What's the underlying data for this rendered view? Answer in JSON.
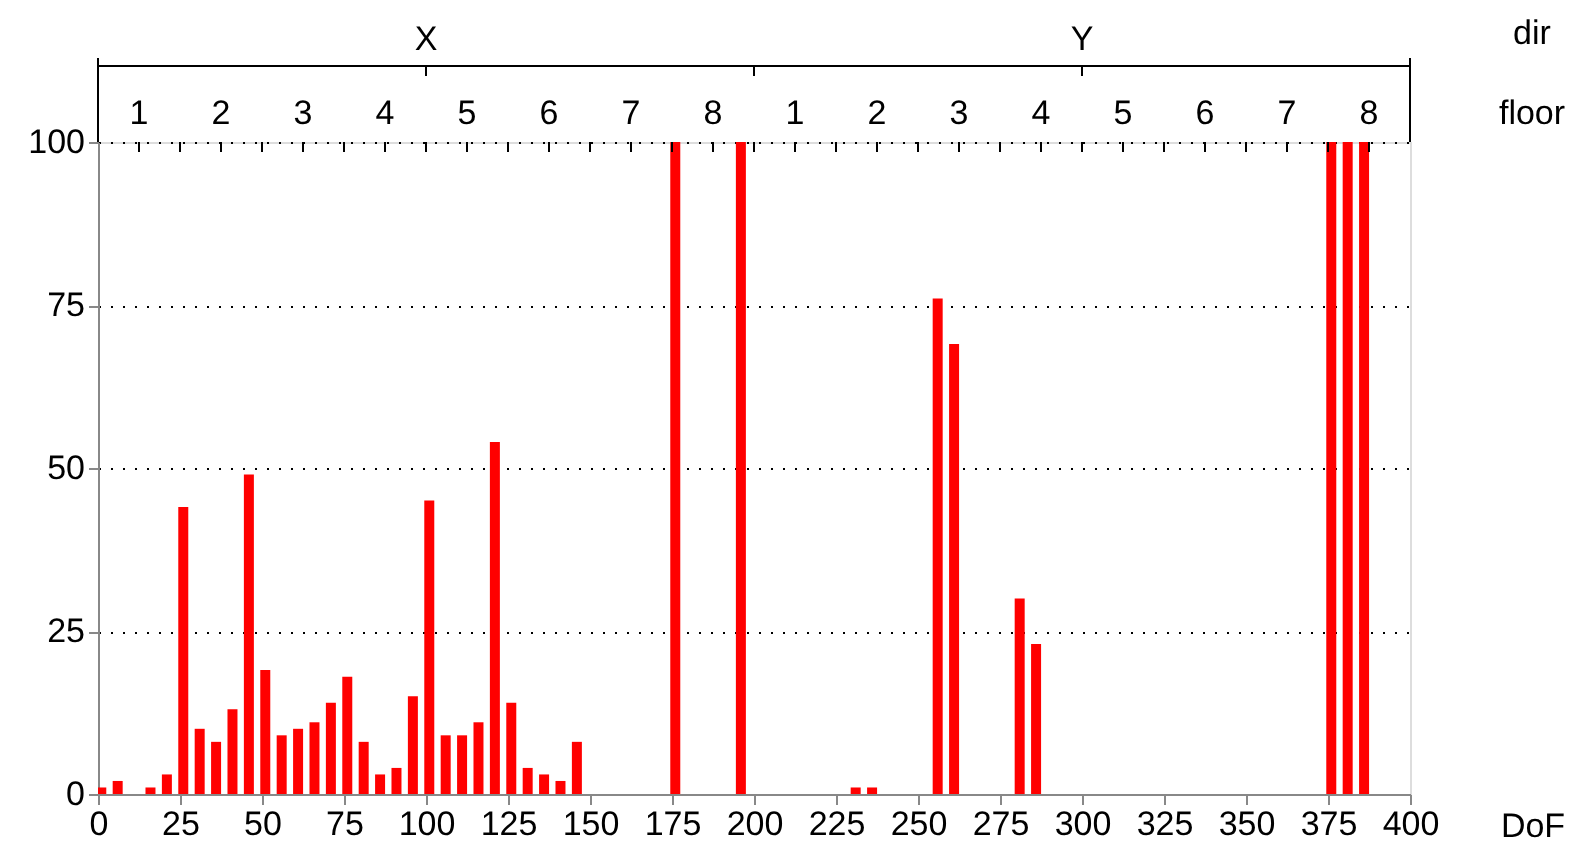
{
  "chart_data": {
    "type": "bar",
    "xlabel": "DoF",
    "color": "#ff0000",
    "grid": "y",
    "x": [
      1,
      6,
      16,
      21,
      26,
      31,
      36,
      41,
      46,
      51,
      56,
      61,
      66,
      71,
      76,
      81,
      86,
      91,
      96,
      101,
      106,
      111,
      116,
      121,
      126,
      131,
      136,
      141,
      146,
      176,
      196,
      231,
      236,
      256,
      261,
      281,
      286,
      376,
      381,
      386
    ],
    "values": [
      1,
      2,
      1,
      3,
      44,
      10,
      8,
      13,
      49,
      19,
      9,
      10,
      11,
      14,
      18,
      8,
      3,
      4,
      15,
      45,
      9,
      9,
      11,
      54,
      14,
      4,
      3,
      2,
      8,
      100,
      100,
      1,
      1,
      76,
      69,
      30,
      23,
      100,
      100,
      100
    ],
    "xlim": [
      0,
      400
    ],
    "xticks": [
      0,
      25,
      50,
      75,
      100,
      125,
      150,
      175,
      200,
      225,
      250,
      275,
      300,
      325,
      350,
      375,
      400
    ],
    "ylim": [
      0,
      100
    ],
    "yticks": [
      0,
      25,
      50,
      75,
      100
    ],
    "annotations": [
      "dir",
      "X",
      "Y",
      "floor",
      "1",
      "2",
      "3",
      "4",
      "5",
      "6",
      "7",
      "8",
      "1",
      "2",
      "3",
      "4",
      "5",
      "6",
      "7",
      "8"
    ]
  }
}
